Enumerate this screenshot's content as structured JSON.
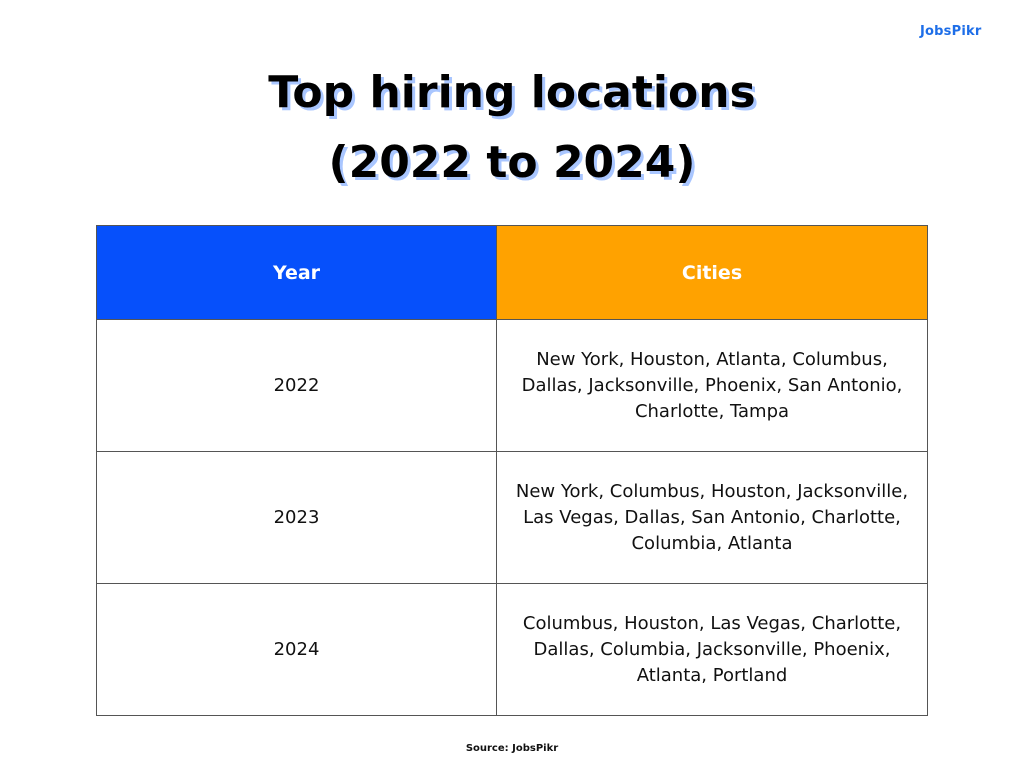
{
  "logo": "JobsPikr",
  "title_line1": "Top hiring locations",
  "title_line2": "(2022 to 2024)",
  "colors": {
    "year_header": "#0650fb",
    "cities_header": "#ffa200",
    "title_shadow": "#a9c6ff",
    "logo": "#1e6ee8"
  },
  "table": {
    "headers": [
      "Year",
      "Cities"
    ],
    "rows": [
      {
        "year": "2022",
        "cities": "New York, Houston, Atlanta, Columbus, Dallas, Jacksonville, Phoenix, San Antonio, Charlotte, Tampa"
      },
      {
        "year": "2023",
        "cities": "New York, Columbus, Houston, Jacksonville, Las Vegas, Dallas, San Antonio, Charlotte, Columbia, Atlanta"
      },
      {
        "year": "2024",
        "cities": "Columbus, Houston, Las Vegas, Charlotte, Dallas, Columbia, Jacksonville, Phoenix, Atlanta, Portland"
      }
    ]
  },
  "source": "Source: JobsPikr"
}
